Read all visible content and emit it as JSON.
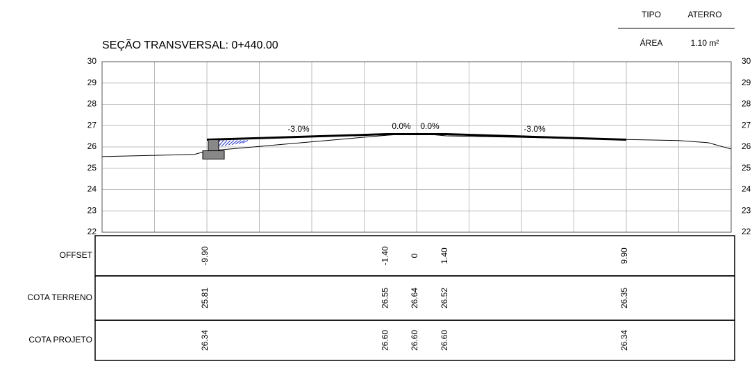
{
  "header": {
    "title": "SEÇÃO TRANSVERSAL: 0+440.00",
    "info": {
      "columns": [
        "TIPO",
        "ATERRO"
      ],
      "row": [
        "ÁREA",
        "1.10 m²"
      ]
    }
  },
  "axis": {
    "ylim": [
      22,
      30
    ],
    "yticks": [
      22,
      23,
      24,
      25,
      26,
      27,
      28,
      29,
      30
    ]
  },
  "slopes": [
    "-3.0%",
    "0.0%",
    "0.0%",
    "-3.0%"
  ],
  "table": {
    "rows": [
      {
        "label": "OFFSET",
        "values": [
          "-9.90",
          "-1.40",
          "0",
          "1.40",
          "9.90"
        ]
      },
      {
        "label": "COTA TERRENO",
        "values": [
          "25.81",
          "26.55",
          "26.64",
          "26.52",
          "26.35"
        ]
      },
      {
        "label": "COTA PROJETO",
        "values": [
          "26.34",
          "26.60",
          "26.60",
          "26.60",
          "26.34"
        ]
      }
    ]
  }
}
